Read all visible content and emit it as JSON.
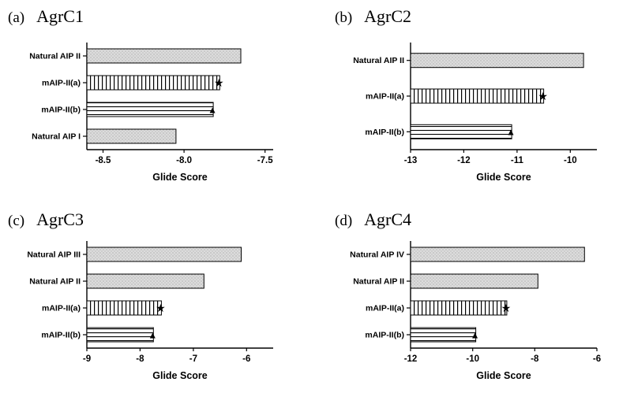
{
  "colors": {
    "background": "#ffffff",
    "bar_fill_gray": "#dcdcdc",
    "bar_stroke": "#000000",
    "axis_color": "#000000"
  },
  "marker_glyphs": {
    "star": "★",
    "triangle": "▲"
  },
  "chart_data": [
    {
      "type": "bar",
      "orientation": "horizontal",
      "panel": "(a)",
      "title": "AgrC1",
      "xlabel": "Glide Score",
      "xlim": [
        -8.6,
        -7.45
      ],
      "xticks": [
        -8.5,
        -8.0,
        -7.5
      ],
      "xtick_labels": [
        "-8.5",
        "-8.0",
        "-7.5"
      ],
      "grid": false,
      "legend": "none",
      "categories": [
        "Natural AIP II",
        "mAIP-II(a)",
        "mAIP-II(b)",
        "Natural AIP I"
      ],
      "values": [
        -7.65,
        -7.78,
        -7.82,
        -8.05
      ],
      "patterns": [
        "stipple",
        "vlines",
        "hlines",
        "stipple"
      ],
      "markers": [
        null,
        "star",
        "triangle",
        null
      ]
    },
    {
      "type": "bar",
      "orientation": "horizontal",
      "panel": "(b)",
      "title": "AgrC2",
      "xlabel": "Glide Score",
      "xlim": [
        -13,
        -9.5
      ],
      "xticks": [
        -13,
        -12,
        -11,
        -10
      ],
      "xtick_labels": [
        "-13",
        "-12",
        "-11",
        "-10"
      ],
      "grid": false,
      "legend": "none",
      "categories": [
        "Natural AIP II",
        "mAIP-II(a)",
        "mAIP-II(b)"
      ],
      "values": [
        -9.75,
        -10.5,
        -11.1
      ],
      "patterns": [
        "stipple",
        "vlines",
        "hlines"
      ],
      "markers": [
        null,
        "star",
        "triangle"
      ]
    },
    {
      "type": "bar",
      "orientation": "horizontal",
      "panel": "(c)",
      "title": "AgrC3",
      "xlabel": "Glide Score",
      "xlim": [
        -9,
        -5.5
      ],
      "xticks": [
        -9,
        -8,
        -7,
        -6
      ],
      "xtick_labels": [
        "-9",
        "-8",
        "-7",
        "-6"
      ],
      "grid": false,
      "legend": "none",
      "categories": [
        "Natural AIP III",
        "Natural AIP II",
        "mAIP-II(a)",
        "mAIP-II(b)"
      ],
      "values": [
        -6.1,
        -6.8,
        -7.6,
        -7.75
      ],
      "patterns": [
        "stipple",
        "stipple",
        "vlines",
        "hlines"
      ],
      "markers": [
        null,
        null,
        "star",
        "triangle"
      ]
    },
    {
      "type": "bar",
      "orientation": "horizontal",
      "panel": "(d)",
      "title": "AgrC4",
      "xlabel": "Glide Score",
      "xlim": [
        -12,
        -6
      ],
      "xticks": [
        -12,
        -10,
        -8,
        -6
      ],
      "xtick_labels": [
        "-12",
        "-10",
        "-8",
        "-6"
      ],
      "grid": false,
      "legend": "none",
      "categories": [
        "Natural AIP IV",
        "Natural AIP II",
        "mAIP-II(a)",
        "mAIP-II(b)"
      ],
      "values": [
        -6.4,
        -7.9,
        -8.9,
        -9.9
      ],
      "patterns": [
        "stipple",
        "stipple",
        "vlines",
        "hlines"
      ],
      "markers": [
        null,
        null,
        "star",
        "triangle"
      ]
    }
  ]
}
